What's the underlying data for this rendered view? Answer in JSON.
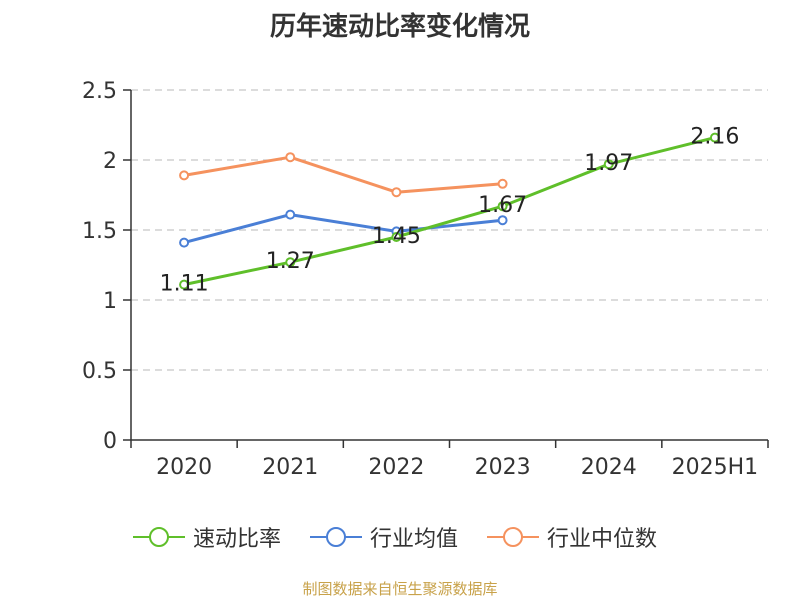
{
  "chart_data": {
    "type": "line",
    "title": "历年速动比率变化情况",
    "categories": [
      "2020",
      "2021",
      "2022",
      "2023",
      "2024",
      "2025H1"
    ],
    "ylim": [
      0,
      2.5
    ],
    "yticks": [
      "0",
      "0.5",
      "1",
      "1.5",
      "2",
      "2.5"
    ],
    "grid": true,
    "legend_position": "bottom",
    "series": [
      {
        "name": "速动比率",
        "color": "#5fbf2a",
        "values": [
          1.11,
          1.27,
          1.45,
          1.67,
          1.97,
          2.16
        ],
        "labels": [
          "1.11",
          "1.27",
          "1.45",
          "1.67",
          "1.97",
          "2.16"
        ]
      },
      {
        "name": "行业均值",
        "color": "#4a7fd6",
        "values": [
          1.41,
          1.61,
          1.49,
          1.57,
          null,
          null
        ]
      },
      {
        "name": "行业中位数",
        "color": "#f5925e",
        "values": [
          1.89,
          2.02,
          1.77,
          1.83,
          null,
          null
        ]
      }
    ]
  },
  "source": "制图数据来自恒生聚源数据库"
}
